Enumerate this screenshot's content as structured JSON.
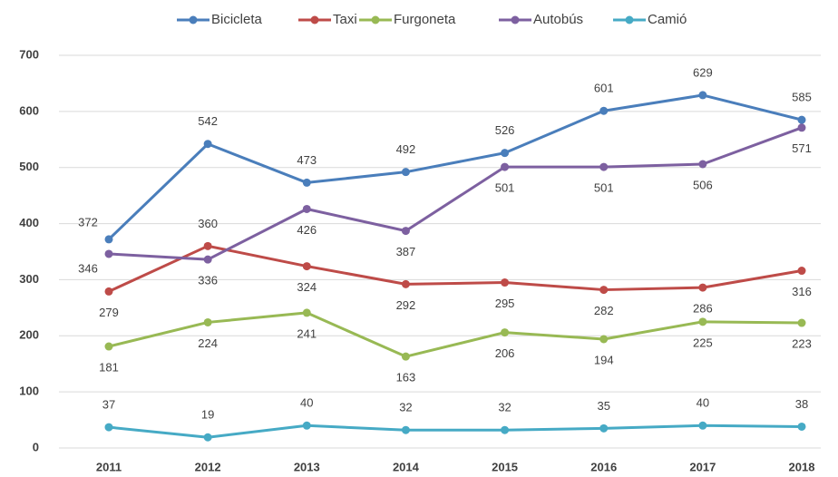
{
  "chart_data": {
    "type": "line",
    "categories": [
      "2011",
      "2012",
      "2013",
      "2014",
      "2015",
      "2016",
      "2017",
      "2018"
    ],
    "series": [
      {
        "name": "Bicicleta",
        "color": "#4a7ebb",
        "values": [
          372,
          542,
          473,
          492,
          526,
          601,
          629,
          585
        ]
      },
      {
        "name": "Taxi",
        "color": "#be4b48",
        "values": [
          279,
          360,
          324,
          292,
          295,
          282,
          286,
          316
        ]
      },
      {
        "name": "Furgoneta",
        "color": "#98b954",
        "values": [
          181,
          224,
          241,
          163,
          206,
          194,
          225,
          223
        ]
      },
      {
        "name": "Autobús",
        "color": "#7d60a0",
        "values": [
          346,
          336,
          426,
          387,
          501,
          501,
          506,
          571
        ]
      },
      {
        "name": "Camió",
        "color": "#46aac5",
        "values": [
          37,
          19,
          40,
          32,
          32,
          35,
          40,
          38
        ]
      }
    ],
    "ylim": [
      0,
      700
    ],
    "yticks": [
      0,
      100,
      200,
      300,
      400,
      500,
      600,
      700
    ],
    "grid": true,
    "legend": "top"
  }
}
